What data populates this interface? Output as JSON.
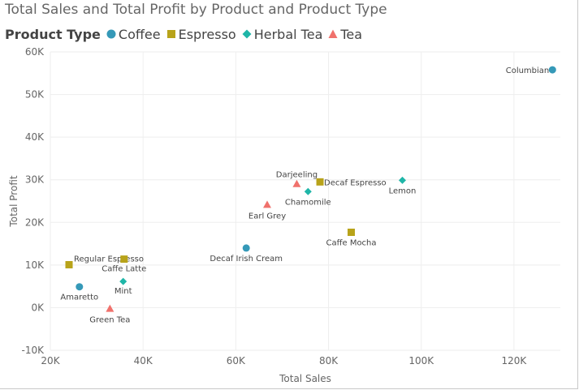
{
  "chart_data": {
    "type": "scatter",
    "title": "Total Sales and Total Profit by Product and Product Type",
    "legend_title": "Product Type",
    "xlabel": "Total Sales",
    "ylabel": "Total Profit",
    "xlim": [
      20000,
      130000
    ],
    "ylim": [
      -10000,
      60000
    ],
    "x_ticks": [
      20000,
      40000,
      60000,
      80000,
      100000,
      120000
    ],
    "x_tick_labels": [
      "20K",
      "40K",
      "60K",
      "80K",
      "100K",
      "120K"
    ],
    "y_ticks": [
      -10000,
      0,
      10000,
      20000,
      30000,
      40000,
      50000,
      60000
    ],
    "y_tick_labels": [
      "-10K",
      "0K",
      "10K",
      "20K",
      "30K",
      "40K",
      "50K",
      "60K"
    ],
    "grid": true,
    "legend_position": "top-left",
    "series": [
      {
        "name": "Coffee",
        "color": "#3599b8",
        "marker": "circle",
        "points": [
          {
            "label": "Columbian",
            "x": 128300,
            "y": 55800
          },
          {
            "label": "Decaf Irish Cream",
            "x": 62250,
            "y": 13990
          },
          {
            "label": "Amaretto",
            "x": 26270,
            "y": 4890
          }
        ]
      },
      {
        "name": "Espresso",
        "color": "#b8a31a",
        "marker": "square",
        "points": [
          {
            "label": "Decaf Espresso",
            "x": 78160,
            "y": 29500
          },
          {
            "label": "Caffe Mocha",
            "x": 84900,
            "y": 17680
          },
          {
            "label": "Regular Espresso",
            "x": 24030,
            "y": 10070
          },
          {
            "label": "Caffe Latte",
            "x": 35900,
            "y": 11380
          }
        ]
      },
      {
        "name": "Herbal Tea",
        "color": "#1fb6a8",
        "marker": "diamond",
        "points": [
          {
            "label": "Lemon",
            "x": 95930,
            "y": 29870
          },
          {
            "label": "Chamomile",
            "x": 75580,
            "y": 27230
          },
          {
            "label": "Mint",
            "x": 35710,
            "y": 6150
          }
        ]
      },
      {
        "name": "Tea",
        "color": "#f0716c",
        "marker": "triangle",
        "points": [
          {
            "label": "Darjeeling",
            "x": 73150,
            "y": 29050
          },
          {
            "label": "Earl Grey",
            "x": 66770,
            "y": 24160
          },
          {
            "label": "Green Tea",
            "x": 32850,
            "y": -230
          }
        ]
      }
    ]
  }
}
